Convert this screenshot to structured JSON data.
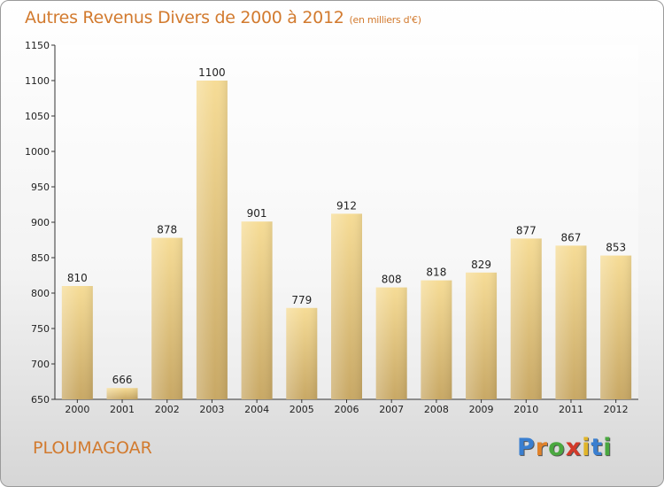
{
  "header": {
    "title": "Autres Revenus Divers de 2000 à 2012",
    "unit": "(en milliers d'€)"
  },
  "footer": {
    "place": "PLOUMAGOAR",
    "logo": [
      "P",
      "r",
      "o",
      "x",
      "i",
      "t",
      "i"
    ],
    "logo_colors": [
      "#3a7fd0",
      "#e0822a",
      "#4aa840",
      "#d23a2a",
      "#e0b52a",
      "#3a7fd0",
      "#4aa840"
    ]
  },
  "colors": {
    "bar_light": "#f6dc96",
    "bar_dark": "#c8a865",
    "title": "#d27a2e"
  },
  "chart_data": {
    "type": "bar",
    "categories": [
      "2000",
      "2001",
      "2002",
      "2003",
      "2004",
      "2005",
      "2006",
      "2007",
      "2008",
      "2009",
      "2010",
      "2011",
      "2012"
    ],
    "values": [
      810,
      666,
      878,
      1100,
      901,
      779,
      912,
      808,
      818,
      829,
      877,
      867,
      853
    ],
    "title": "Autres Revenus Divers de 2000 à 2012",
    "xlabel": "",
    "ylabel": "",
    "ylim": [
      650,
      1150
    ],
    "yticks": [
      650,
      700,
      750,
      800,
      850,
      900,
      950,
      1000,
      1050,
      1100,
      1150
    ],
    "grid": false,
    "legend": "none"
  }
}
